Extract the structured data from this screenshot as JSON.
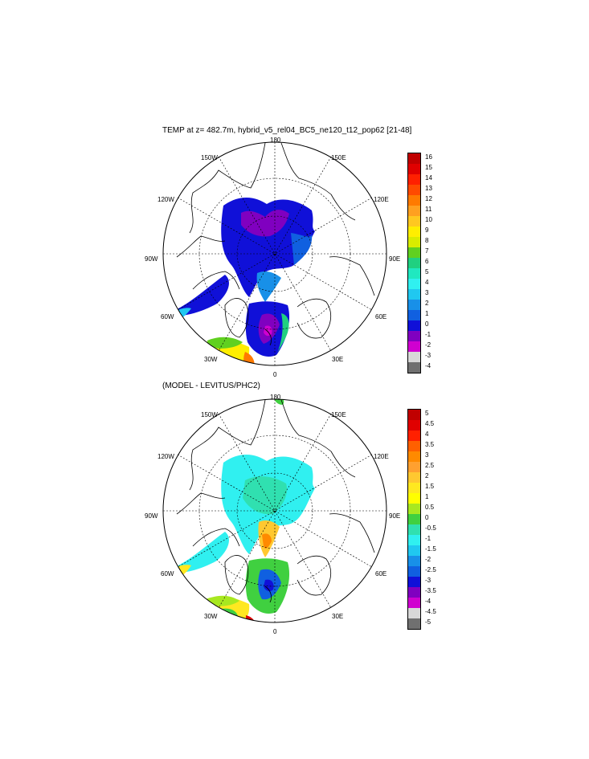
{
  "panels": [
    {
      "title": "TEMP at z= 482.7m, hybrid_v5_rel04_BC5_ne120_t12_pop62 [21-48]",
      "longitude_labels": {
        "top": "180",
        "tl": "150W",
        "tr": "150E",
        "ul": "120W",
        "ur": "120E",
        "l": "90W",
        "r": "90E",
        "ll": "60W",
        "lr": "60E",
        "bl": "30W",
        "br": "30E",
        "bottom": "0"
      },
      "colorbar": {
        "labels": [
          "16",
          "15",
          "14",
          "13",
          "12",
          "11",
          "10",
          "9",
          "8",
          "7",
          "6",
          "5",
          "4",
          "3",
          "2",
          "1",
          "0",
          "-1",
          "-2",
          "-3",
          "-4"
        ],
        "colors": [
          "#c00000",
          "#e00000",
          "#ff2000",
          "#ff4a00",
          "#ff7a00",
          "#ffa020",
          "#ffc820",
          "#ffee00",
          "#d8ec00",
          "#60d020",
          "#20d080",
          "#20e8c0",
          "#30f0f0",
          "#20c8f0",
          "#1890e8",
          "#1060e0",
          "#1010d8",
          "#8000c0",
          "#d000d0",
          "#d8d8d8",
          "#707070"
        ]
      }
    },
    {
      "title": "(MODEL - LEVITUS/PHC2)",
      "longitude_labels": {
        "top": "180",
        "tl": "150W",
        "tr": "150E",
        "ul": "120W",
        "ur": "120E",
        "l": "90W",
        "r": "90E",
        "ll": "60W",
        "lr": "60E",
        "bl": "30W",
        "br": "30E",
        "bottom": "0"
      },
      "colorbar": {
        "labels": [
          "5",
          "4.5",
          "4",
          "3.5",
          "3",
          "2.5",
          "2",
          "1.5",
          "1",
          "0.5",
          "0",
          "-0.5",
          "-1",
          "-1.5",
          "-2",
          "-2.5",
          "-3",
          "-3.5",
          "-4",
          "-4.5",
          "-5"
        ],
        "colors": [
          "#c00000",
          "#e00000",
          "#ff2000",
          "#ff6000",
          "#ff8a00",
          "#ffa030",
          "#ffc830",
          "#ffe820",
          "#ffff00",
          "#a8e820",
          "#40d040",
          "#30e0b0",
          "#30f0f0",
          "#20c8f0",
          "#1890e8",
          "#1060e0",
          "#1010d8",
          "#8000c0",
          "#d000d0",
          "#d8d8d8",
          "#707070"
        ]
      }
    }
  ]
}
